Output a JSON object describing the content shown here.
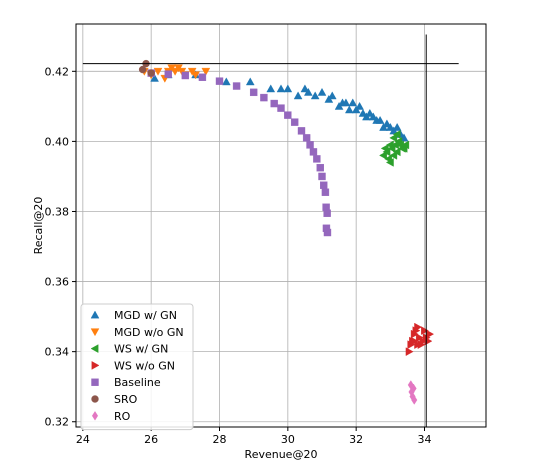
{
  "chart_data": {
    "type": "scatter",
    "xlabel": "Revenue@20",
    "ylabel": "Recall@20",
    "xlim": [
      23.8,
      35.8
    ],
    "ylim": [
      0.3185,
      0.4335
    ],
    "xticks": [
      24,
      26,
      28,
      30,
      32,
      34
    ],
    "yticks": [
      0.32,
      0.34,
      0.36,
      0.38,
      0.4,
      0.42
    ],
    "xtick_labels": [
      "24",
      "26",
      "28",
      "30",
      "32",
      "34"
    ],
    "ytick_labels": [
      "0.32",
      "0.34",
      "0.36",
      "0.38",
      "0.40",
      "0.42"
    ],
    "grid": true,
    "legend_position": "lower-left",
    "reference_lines": {
      "horizontal": {
        "y": 0.4222,
        "x_from": 24.0,
        "x_to": 35.0
      },
      "vertical": {
        "x": 34.05,
        "y_from": 0.3185,
        "y_to": 0.4305
      }
    },
    "series": [
      {
        "name": "MGD w/ GN",
        "color": "#1f77b4",
        "marker": "triangle-up",
        "points": [
          [
            26.1,
            0.418
          ],
          [
            26.5,
            0.419
          ],
          [
            27.3,
            0.419
          ],
          [
            28.2,
            0.417
          ],
          [
            28.9,
            0.417
          ],
          [
            29.5,
            0.415
          ],
          [
            29.8,
            0.415
          ],
          [
            30.0,
            0.415
          ],
          [
            30.3,
            0.413
          ],
          [
            30.5,
            0.415
          ],
          [
            30.6,
            0.414
          ],
          [
            30.8,
            0.413
          ],
          [
            31.0,
            0.414
          ],
          [
            31.2,
            0.412
          ],
          [
            31.3,
            0.413
          ],
          [
            31.5,
            0.41
          ],
          [
            31.6,
            0.411
          ],
          [
            31.7,
            0.411
          ],
          [
            31.8,
            0.409
          ],
          [
            31.9,
            0.411
          ],
          [
            32.0,
            0.409
          ],
          [
            32.1,
            0.41
          ],
          [
            32.2,
            0.408
          ],
          [
            32.3,
            0.407
          ],
          [
            32.4,
            0.408
          ],
          [
            32.5,
            0.407
          ],
          [
            32.6,
            0.406
          ],
          [
            32.7,
            0.406
          ],
          [
            32.8,
            0.404
          ],
          [
            32.9,
            0.405
          ],
          [
            33.0,
            0.404
          ],
          [
            33.1,
            0.403
          ],
          [
            33.2,
            0.404
          ],
          [
            33.3,
            0.402
          ],
          [
            33.4,
            0.401
          ]
        ]
      },
      {
        "name": "MGD w/o GN",
        "color": "#ff7f0e",
        "marker": "triangle-down",
        "points": [
          [
            25.8,
            0.42
          ],
          [
            26.0,
            0.419
          ],
          [
            26.2,
            0.42
          ],
          [
            26.4,
            0.418
          ],
          [
            26.5,
            0.42
          ],
          [
            26.6,
            0.421
          ],
          [
            26.7,
            0.42
          ],
          [
            26.8,
            0.421
          ],
          [
            26.9,
            0.42
          ],
          [
            27.0,
            0.419
          ],
          [
            27.2,
            0.42
          ],
          [
            27.3,
            0.419
          ],
          [
            27.6,
            0.42
          ]
        ]
      },
      {
        "name": "WS w/ GN",
        "color": "#2ca02c",
        "marker": "triangle-left",
        "points": [
          [
            32.8,
            0.396
          ],
          [
            32.85,
            0.398
          ],
          [
            32.9,
            0.397
          ],
          [
            32.95,
            0.395
          ],
          [
            33.0,
            0.399
          ],
          [
            33.0,
            0.394
          ],
          [
            33.05,
            0.398
          ],
          [
            33.1,
            0.396
          ],
          [
            33.15,
            0.399
          ],
          [
            33.2,
            0.397
          ],
          [
            33.25,
            0.4
          ],
          [
            33.3,
            0.399
          ],
          [
            33.35,
            0.398
          ],
          [
            33.4,
            0.398
          ],
          [
            33.45,
            0.399
          ],
          [
            33.1,
            0.401
          ],
          [
            33.2,
            0.402
          ]
        ]
      },
      {
        "name": "WS w/o GN",
        "color": "#d62728",
        "marker": "triangle-right",
        "points": [
          [
            33.55,
            0.34
          ],
          [
            33.6,
            0.342
          ],
          [
            33.65,
            0.343
          ],
          [
            33.7,
            0.345
          ],
          [
            33.75,
            0.346
          ],
          [
            33.8,
            0.347
          ],
          [
            33.85,
            0.344
          ],
          [
            33.9,
            0.342
          ],
          [
            33.95,
            0.343
          ],
          [
            34.0,
            0.346
          ],
          [
            34.05,
            0.344
          ],
          [
            34.1,
            0.343
          ],
          [
            34.15,
            0.345
          ],
          [
            33.7,
            0.343
          ],
          [
            33.8,
            0.342
          ]
        ]
      },
      {
        "name": "Baseline",
        "color": "#9467bd",
        "marker": "square",
        "points": [
          [
            26.0,
            0.4195
          ],
          [
            26.5,
            0.4192
          ],
          [
            27.0,
            0.4188
          ],
          [
            27.5,
            0.4183
          ],
          [
            28.0,
            0.4172
          ],
          [
            28.5,
            0.4158
          ],
          [
            29.0,
            0.414
          ],
          [
            29.3,
            0.4125
          ],
          [
            29.6,
            0.4108
          ],
          [
            29.8,
            0.4095
          ],
          [
            30.0,
            0.4075
          ],
          [
            30.2,
            0.4055
          ],
          [
            30.4,
            0.403
          ],
          [
            30.55,
            0.401
          ],
          [
            30.65,
            0.399
          ],
          [
            30.75,
            0.397
          ],
          [
            30.85,
            0.395
          ],
          [
            30.95,
            0.3925
          ],
          [
            31.0,
            0.39
          ],
          [
            31.05,
            0.3875
          ],
          [
            31.1,
            0.3855
          ],
          [
            31.12,
            0.3812
          ],
          [
            31.15,
            0.3795
          ],
          [
            31.13,
            0.3752
          ],
          [
            31.16,
            0.374
          ]
        ]
      },
      {
        "name": "SRO",
        "color": "#8c564b",
        "marker": "circle",
        "points": [
          [
            25.75,
            0.4205
          ],
          [
            25.85,
            0.4222
          ],
          [
            26.0,
            0.4195
          ]
        ]
      },
      {
        "name": "RO",
        "color": "#e377c2",
        "marker": "diamond",
        "points": [
          [
            33.6,
            0.3305
          ],
          [
            33.62,
            0.3285
          ],
          [
            33.65,
            0.3272
          ],
          [
            33.68,
            0.3295
          ],
          [
            33.7,
            0.3262
          ]
        ]
      }
    ]
  }
}
